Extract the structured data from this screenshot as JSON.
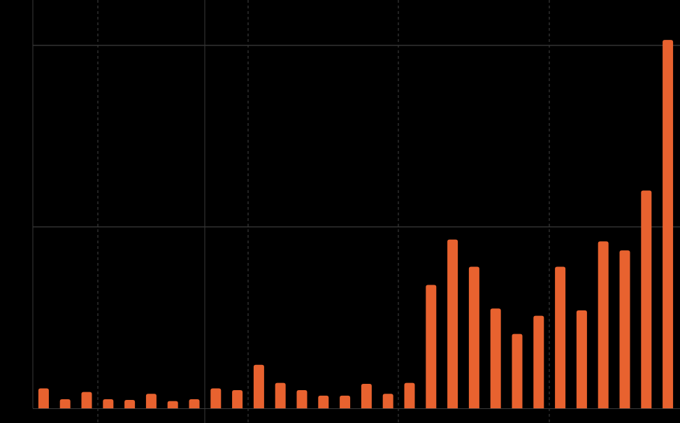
{
  "chart_data": {
    "type": "bar",
    "categories": [
      null,
      null,
      null,
      null,
      null,
      null,
      null,
      null,
      null,
      null,
      null,
      null,
      null,
      null,
      null,
      null,
      null,
      null,
      null,
      null,
      null,
      null,
      null,
      null,
      null,
      null,
      null,
      null,
      null,
      null
    ],
    "values": [
      0.11,
      0.05,
      0.09,
      0.05,
      0.046,
      0.08,
      0.04,
      0.05,
      0.11,
      0.1,
      0.24,
      0.14,
      0.1,
      0.07,
      0.07,
      0.135,
      0.08,
      0.14,
      0.68,
      0.93,
      0.78,
      0.55,
      0.41,
      0.51,
      0.78,
      0.54,
      0.92,
      0.87,
      1.2,
      2.03
    ],
    "color": "#e8622f",
    "ylim": [
      0,
      2.25
    ],
    "yticks": [
      1,
      2
    ],
    "grid": true
  }
}
